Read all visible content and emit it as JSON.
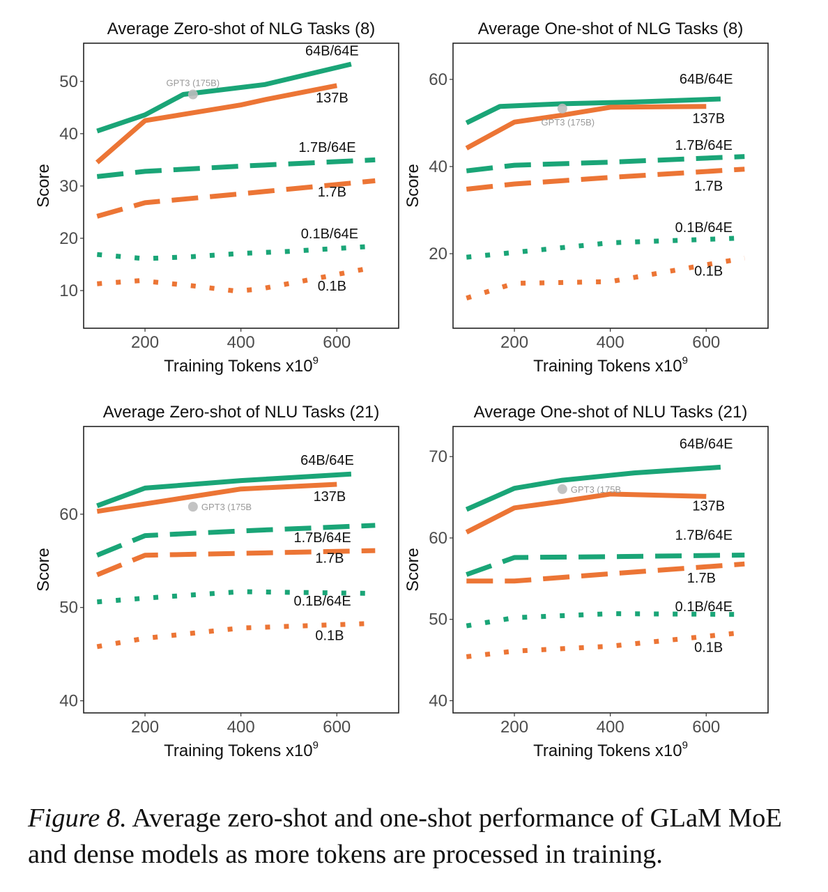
{
  "colors": {
    "moe": "#1aa577",
    "dense": "#ec7535",
    "gpt3": "#bdbdbd",
    "gpt3_label": "#9a9a9a",
    "axis_text": "#4d4d4d",
    "text": "#111111"
  },
  "caption": {
    "label": "Figure 8.",
    "text": " Average zero-shot and one-shot performance of GLaM MoE and dense models as more tokens are processed in training."
  },
  "chart_data": [
    {
      "type": "line",
      "title": "Average Zero-shot of NLG Tasks (8)",
      "xlabel": "Training Tokens x10",
      "xlabel_sup": "9",
      "ylabel": "Score",
      "xlim": [
        72,
        729
      ],
      "ylim": [
        2.8,
        57.3
      ],
      "xticks": [
        200,
        400,
        600
      ],
      "yticks": [
        10,
        20,
        30,
        40,
        50
      ],
      "grid": false,
      "legend": "inline-labels",
      "annotation": {
        "label": "GPT3 (175B)",
        "x": 300,
        "y": 47.5,
        "label_pos": "above"
      },
      "series": [
        {
          "name": "64B/64E",
          "family": "moe",
          "style": "solid",
          "x": [
            100,
            200,
            280,
            450,
            630
          ],
          "y": [
            40.5,
            43.6,
            47.5,
            49.4,
            53.3
          ],
          "label_x": 590,
          "label_y": 55.0
        },
        {
          "name": "137B",
          "family": "dense",
          "style": "solid",
          "x": [
            100,
            200,
            300,
            400,
            450,
            600
          ],
          "y": [
            34.5,
            42.5,
            44.0,
            45.5,
            46.5,
            49.2
          ],
          "label_x": 590,
          "label_y": 46.0
        },
        {
          "name": "1.7B/64E",
          "family": "moe",
          "style": "dashed",
          "x": [
            100,
            200,
            400,
            680
          ],
          "y": [
            31.8,
            32.8,
            33.8,
            35.0
          ],
          "label_x": 580,
          "label_y": 36.5
        },
        {
          "name": "1.7B",
          "family": "dense",
          "style": "dashed",
          "x": [
            100,
            200,
            400,
            680
          ],
          "y": [
            24.2,
            26.8,
            28.5,
            31.0
          ],
          "label_x": 590,
          "label_y": 28.0
        },
        {
          "name": "0.1B/64E",
          "family": "moe",
          "style": "dotted",
          "x": [
            100,
            200,
            300,
            400,
            500,
            680
          ],
          "y": [
            16.9,
            16.1,
            16.5,
            17.1,
            17.5,
            18.5
          ],
          "label_x": 585,
          "label_y": 20.0
        },
        {
          "name": "0.1B",
          "family": "dense",
          "style": "dotted",
          "x": [
            100,
            190,
            300,
            390,
            440,
            550,
            680
          ],
          "y": [
            11.3,
            11.9,
            10.9,
            9.9,
            10.3,
            12.2,
            14.5
          ],
          "label_x": 590,
          "label_y": 10.0
        }
      ]
    },
    {
      "type": "line",
      "title": "Average One-shot of NLG Tasks (8)",
      "xlabel": "Training Tokens x10",
      "xlabel_sup": "9",
      "ylabel": "Score",
      "xlim": [
        72,
        729
      ],
      "ylim": [
        2.9,
        68.3
      ],
      "xticks": [
        200,
        400,
        600
      ],
      "yticks": [
        20,
        40,
        60
      ],
      "grid": false,
      "legend": "inline-labels",
      "annotation": {
        "label": "GPT3 (175B)",
        "x": 300,
        "y": 53.3,
        "label_pos": "below"
      },
      "series": [
        {
          "name": "64B/64E",
          "family": "moe",
          "style": "solid",
          "x": [
            100,
            170,
            300,
            450,
            630
          ],
          "y": [
            50.0,
            53.8,
            54.4,
            54.8,
            55.5
          ],
          "label_x": 600,
          "label_y": 59.0
        },
        {
          "name": "137B",
          "family": "dense",
          "style": "solid",
          "x": [
            100,
            200,
            300,
            400,
            600
          ],
          "y": [
            44.2,
            50.2,
            51.8,
            53.6,
            53.8
          ],
          "label_x": 605,
          "label_y": 50.0
        },
        {
          "name": "1.7B/64E",
          "family": "moe",
          "style": "dashed",
          "x": [
            100,
            200,
            400,
            680
          ],
          "y": [
            39.0,
            40.3,
            41.0,
            42.3
          ],
          "label_x": 595,
          "label_y": 43.8
        },
        {
          "name": "1.7B",
          "family": "dense",
          "style": "dashed",
          "x": [
            100,
            200,
            400,
            680
          ],
          "y": [
            34.8,
            36.0,
            37.5,
            39.4
          ],
          "label_x": 605,
          "label_y": 34.5
        },
        {
          "name": "0.1B/64E",
          "family": "moe",
          "style": "dotted",
          "x": [
            100,
            200,
            400,
            680
          ],
          "y": [
            19.2,
            20.3,
            22.5,
            23.6
          ],
          "label_x": 595,
          "label_y": 25.0
        },
        {
          "name": "0.1B",
          "family": "dense",
          "style": "dotted",
          "x": [
            100,
            200,
            400,
            680
          ],
          "y": [
            9.8,
            13.2,
            13.6,
            19.0
          ],
          "label_x": 605,
          "label_y": 15.0
        }
      ]
    },
    {
      "type": "line",
      "title": "Average Zero-shot of NLU Tasks (21)",
      "xlabel": "Training Tokens x10",
      "xlabel_sup": "9",
      "ylabel": "Score",
      "xlim": [
        72,
        729
      ],
      "ylim": [
        38.7,
        69.4
      ],
      "xticks": [
        200,
        400,
        600
      ],
      "yticks": [
        40,
        50,
        60
      ],
      "grid": false,
      "legend": "inline-labels",
      "annotation": {
        "label": "GPT3 (175B",
        "x": 300,
        "y": 60.8,
        "label_pos": "right"
      },
      "series": [
        {
          "name": "64B/64E",
          "family": "moe",
          "style": "solid",
          "x": [
            100,
            200,
            400,
            630
          ],
          "y": [
            60.9,
            62.8,
            63.6,
            64.3
          ],
          "label_x": 580,
          "label_y": 65.3
        },
        {
          "name": "137B",
          "family": "dense",
          "style": "solid",
          "x": [
            100,
            200,
            400,
            600
          ],
          "y": [
            60.3,
            61.1,
            62.7,
            63.2
          ],
          "label_x": 585,
          "label_y": 61.4
        },
        {
          "name": "1.7B/64E",
          "family": "moe",
          "style": "dashed",
          "x": [
            100,
            200,
            400,
            680
          ],
          "y": [
            55.6,
            57.7,
            58.2,
            58.8
          ],
          "label_x": 570,
          "label_y": 57.0
        },
        {
          "name": "1.7B",
          "family": "dense",
          "style": "dashed",
          "x": [
            100,
            200,
            400,
            680
          ],
          "y": [
            53.5,
            55.6,
            55.8,
            56.1
          ],
          "label_x": 585,
          "label_y": 54.8
        },
        {
          "name": "0.1B/64E",
          "family": "moe",
          "style": "dotted",
          "x": [
            100,
            200,
            400,
            680
          ],
          "y": [
            50.6,
            51.0,
            51.7,
            51.5
          ],
          "label_x": 570,
          "label_y": 50.2
        },
        {
          "name": "0.1B",
          "family": "dense",
          "style": "dotted",
          "x": [
            100,
            200,
            400,
            680
          ],
          "y": [
            45.8,
            46.7,
            47.8,
            48.3
          ],
          "label_x": 585,
          "label_y": 46.5
        }
      ]
    },
    {
      "type": "line",
      "title": "Average One-shot of NLU Tasks (21)",
      "xlabel": "Training Tokens x10",
      "xlabel_sup": "9",
      "ylabel": "Score",
      "xlim": [
        72,
        729
      ],
      "ylim": [
        38.5,
        73.7
      ],
      "xticks": [
        200,
        400,
        600
      ],
      "yticks": [
        40,
        50,
        60,
        70
      ],
      "grid": false,
      "legend": "inline-labels",
      "annotation": {
        "label": "GPT3 (175B",
        "x": 300,
        "y": 66.0,
        "label_pos": "right"
      },
      "series": [
        {
          "name": "64B/64E",
          "family": "moe",
          "style": "solid",
          "x": [
            100,
            200,
            300,
            450,
            630
          ],
          "y": [
            63.5,
            66.1,
            67.1,
            68.0,
            68.7
          ],
          "label_x": 600,
          "label_y": 71.0
        },
        {
          "name": "137B",
          "family": "dense",
          "style": "solid",
          "x": [
            100,
            200,
            300,
            400,
            600
          ],
          "y": [
            60.7,
            63.7,
            64.5,
            65.4,
            65.1
          ],
          "label_x": 605,
          "label_y": 63.4
        },
        {
          "name": "1.7B/64E",
          "family": "moe",
          "style": "dashed",
          "x": [
            100,
            200,
            400,
            680
          ],
          "y": [
            55.5,
            57.6,
            57.7,
            57.9
          ],
          "label_x": 595,
          "label_y": 59.8
        },
        {
          "name": "1.7B",
          "family": "dense",
          "style": "dashed",
          "x": [
            100,
            200,
            400,
            680
          ],
          "y": [
            54.7,
            54.7,
            55.6,
            56.8
          ],
          "label_x": 590,
          "label_y": 54.5
        },
        {
          "name": "0.1B/64E",
          "family": "moe",
          "style": "dotted",
          "x": [
            100,
            200,
            400,
            680
          ],
          "y": [
            49.2,
            50.2,
            50.7,
            50.6
          ],
          "label_x": 595,
          "label_y": 51.0
        },
        {
          "name": "0.1B",
          "family": "dense",
          "style": "dotted",
          "x": [
            100,
            200,
            400,
            680
          ],
          "y": [
            45.4,
            46.1,
            46.7,
            48.4
          ],
          "label_x": 605,
          "label_y": 46.0
        }
      ]
    }
  ]
}
